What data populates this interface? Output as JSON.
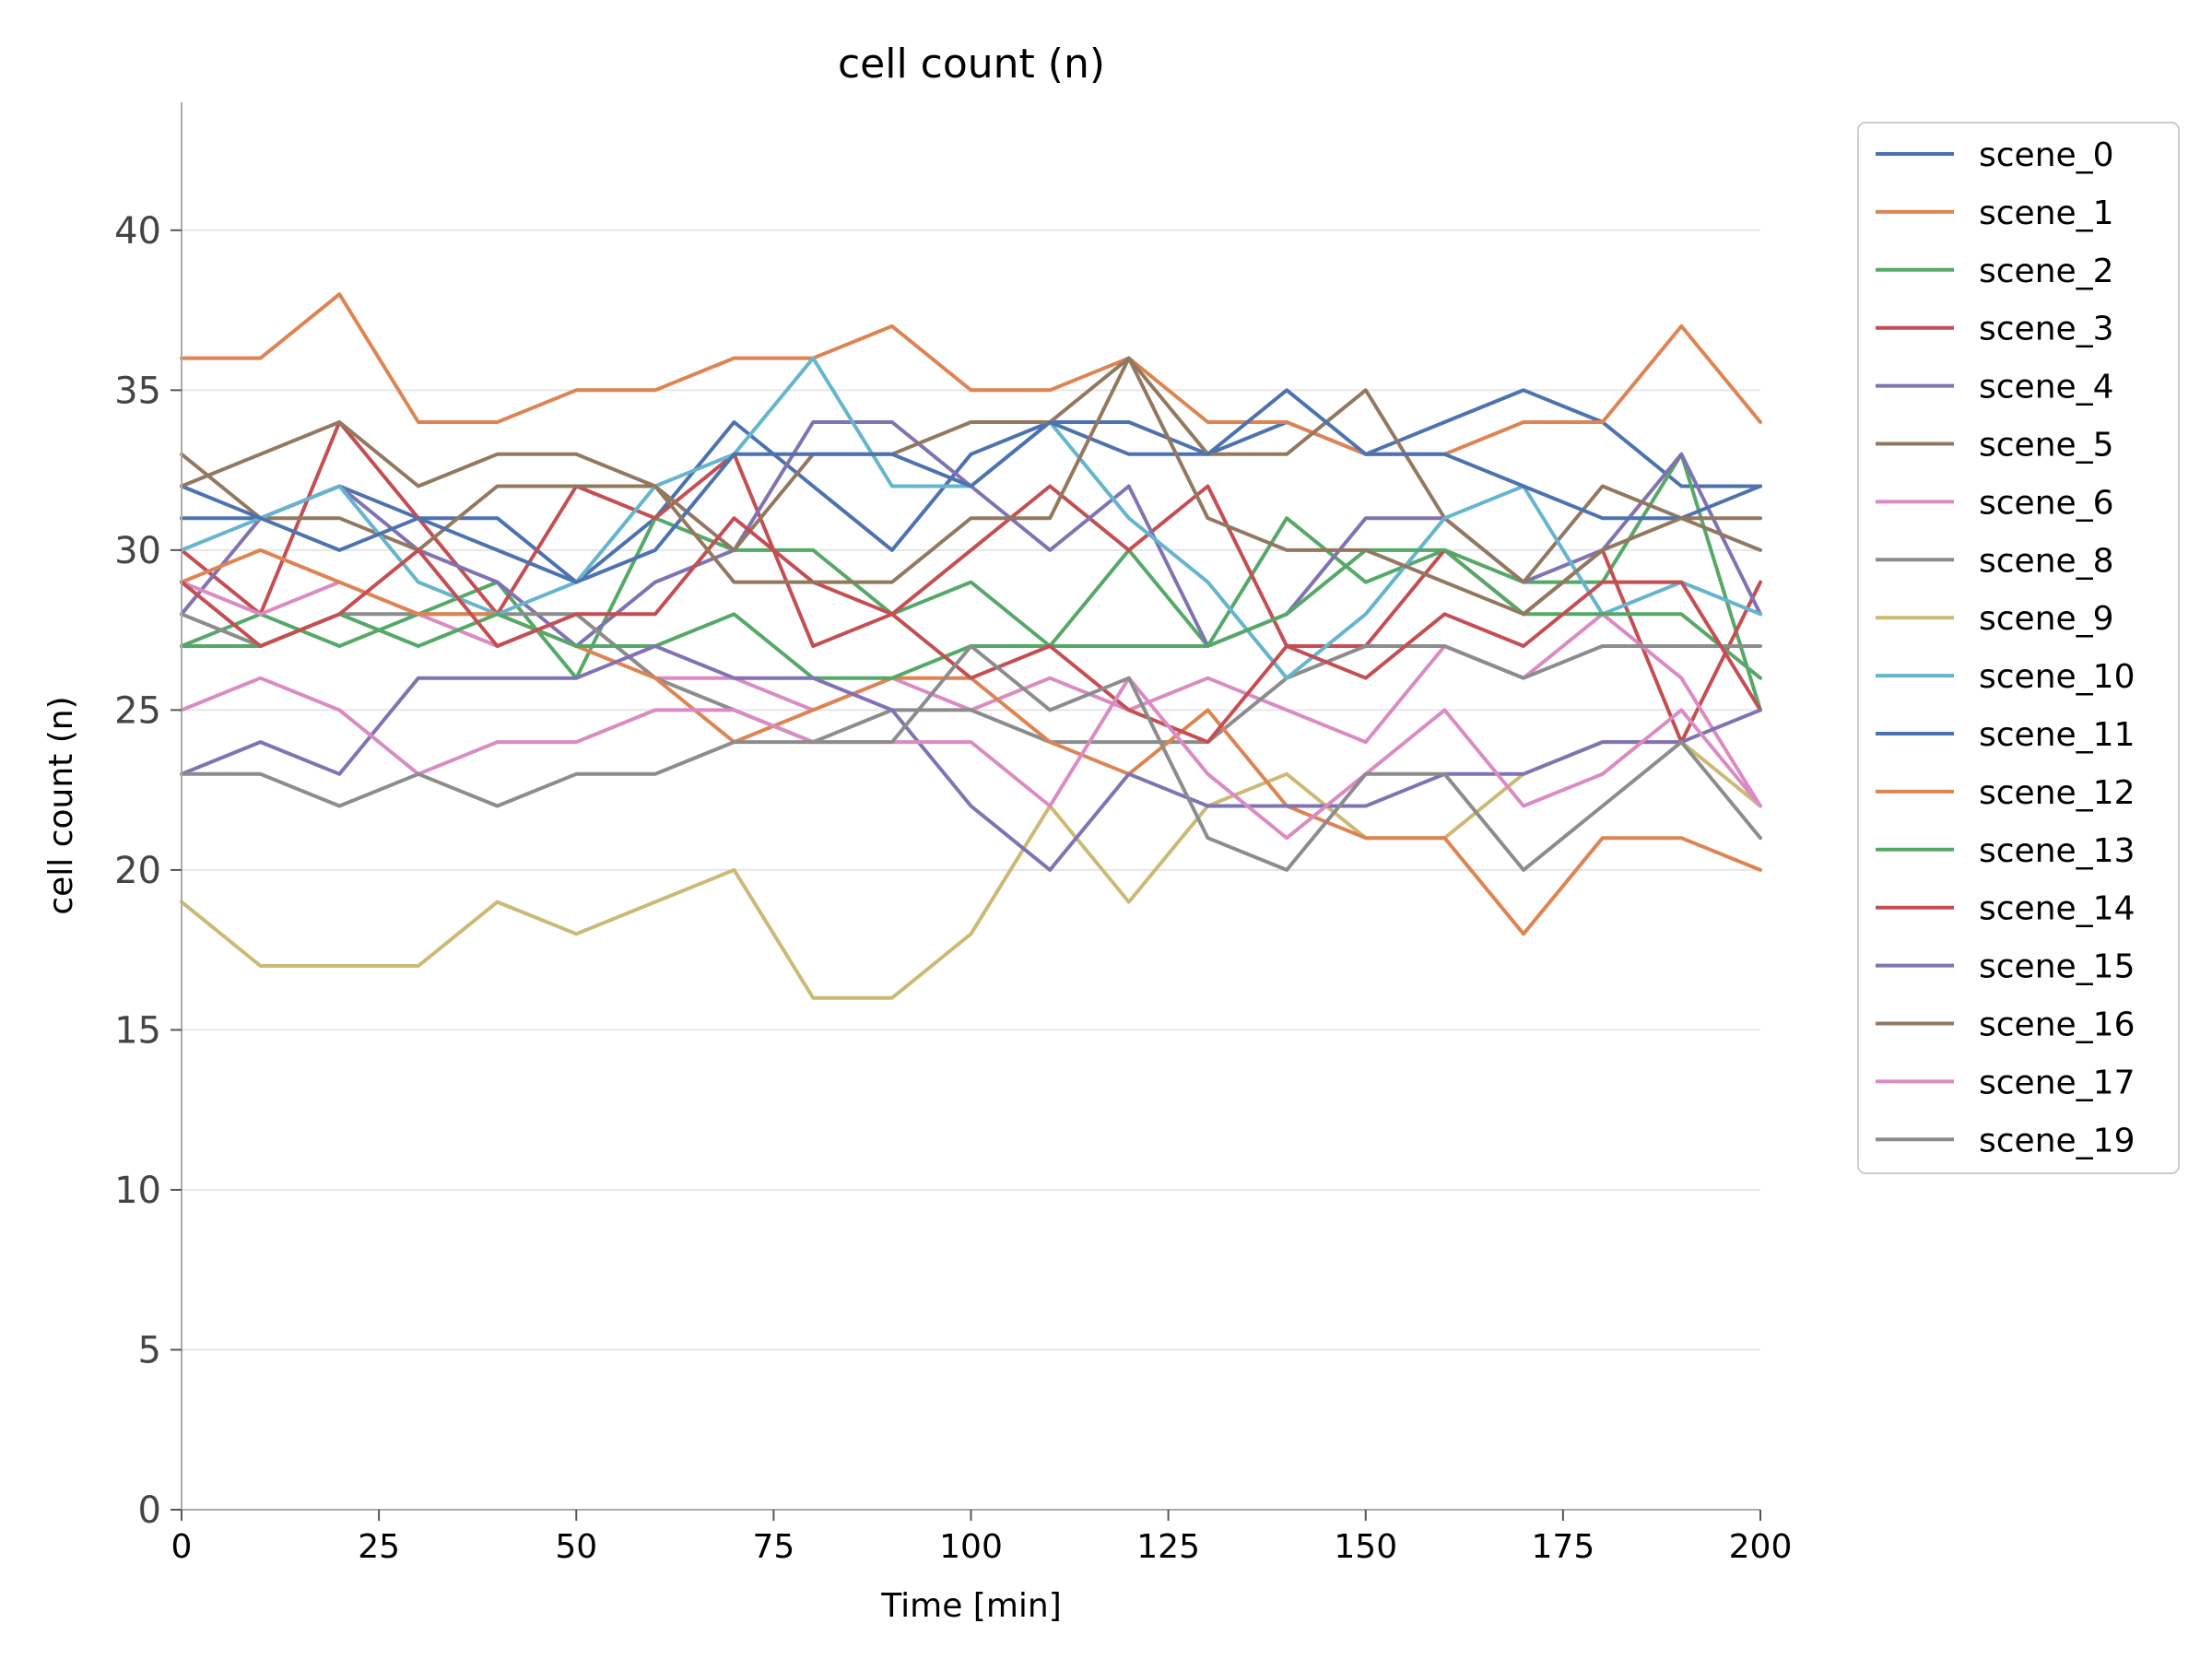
{
  "chart_data": {
    "type": "line",
    "title": "cell count (n)",
    "xlabel": "Time [min]",
    "ylabel": "cell count (n)",
    "xlim": [
      0,
      200
    ],
    "ylim": [
      0,
      44
    ],
    "xticks": [
      0,
      25,
      50,
      75,
      100,
      125,
      150,
      175,
      200
    ],
    "yticks": [
      0,
      5,
      10,
      15,
      20,
      25,
      30,
      35,
      40
    ],
    "grid": "y",
    "legend_position": "outside-right",
    "x": [
      0,
      10,
      20,
      30,
      40,
      50,
      60,
      70,
      80,
      90,
      100,
      110,
      120,
      130,
      140,
      150,
      160,
      170,
      180,
      190,
      200
    ],
    "series": [
      {
        "name": "scene_0",
        "color": "#4c72b0",
        "values": [
          31,
          31,
          32,
          31,
          31,
          29,
          31,
          34,
          32,
          30,
          33,
          34,
          34,
          33,
          34,
          33,
          34,
          35,
          34,
          32,
          32
        ]
      },
      {
        "name": "scene_1",
        "color": "#dd8452",
        "values": [
          36,
          36,
          38,
          34,
          34,
          35,
          35,
          36,
          36,
          37,
          35,
          35,
          36,
          34,
          34,
          33,
          33,
          34,
          34,
          37,
          34
        ]
      },
      {
        "name": "scene_2",
        "color": "#55a868",
        "values": [
          27,
          28,
          27,
          28,
          29,
          26,
          31,
          30,
          30,
          28,
          29,
          27,
          30,
          27,
          31,
          29,
          30,
          29,
          29,
          33,
          25
        ]
      },
      {
        "name": "scene_3",
        "color": "#c44e52",
        "values": [
          30,
          28,
          34,
          31,
          28,
          32,
          31,
          33,
          27,
          28,
          30,
          32,
          30,
          32,
          27,
          27,
          30,
          28,
          30,
          24,
          29
        ]
      },
      {
        "name": "scene_4",
        "color": "#8172b3",
        "values": [
          28,
          31,
          32,
          30,
          29,
          27,
          29,
          30,
          34,
          34,
          32,
          30,
          32,
          27,
          28,
          31,
          31,
          29,
          30,
          33,
          28
        ]
      },
      {
        "name": "scene_5",
        "color": "#937860",
        "values": [
          33,
          31,
          31,
          30,
          32,
          32,
          32,
          30,
          33,
          33,
          34,
          34,
          36,
          33,
          33,
          35,
          31,
          29,
          32,
          31,
          30
        ]
      },
      {
        "name": "scene_6",
        "color": "#da8bc3",
        "values": [
          29,
          28,
          29,
          28,
          27,
          28,
          26,
          26,
          25,
          26,
          25,
          26,
          25,
          26,
          25,
          24,
          27,
          26,
          28,
          26,
          22
        ]
      },
      {
        "name": "scene_8",
        "color": "#8c8c8c",
        "values": [
          28,
          27,
          28,
          28,
          28,
          28,
          26,
          25,
          24,
          25,
          25,
          24,
          24,
          24,
          26,
          27,
          27,
          26,
          27,
          27,
          27
        ]
      },
      {
        "name": "scene_9",
        "color": "#ccb974",
        "values": [
          19,
          17,
          17,
          17,
          19,
          18,
          19,
          20,
          16,
          16,
          18,
          22,
          19,
          22,
          23,
          21,
          21,
          23,
          24,
          24,
          22
        ]
      },
      {
        "name": "scene_10",
        "color": "#64b5cd",
        "values": [
          30,
          31,
          32,
          29,
          28,
          29,
          32,
          33,
          36,
          32,
          32,
          34,
          31,
          29,
          26,
          28,
          31,
          32,
          28,
          29,
          28
        ]
      },
      {
        "name": "scene_11",
        "color": "#4c72b0",
        "values": [
          32,
          31,
          30,
          31,
          30,
          29,
          30,
          33,
          33,
          33,
          32,
          34,
          33,
          33,
          35,
          33,
          33,
          32,
          31,
          31,
          32
        ]
      },
      {
        "name": "scene_12",
        "color": "#dd8452",
        "values": [
          29,
          30,
          29,
          28,
          28,
          27,
          26,
          24,
          25,
          26,
          26,
          24,
          23,
          25,
          22,
          21,
          21,
          18,
          21,
          21,
          20
        ]
      },
      {
        "name": "scene_13",
        "color": "#55a868",
        "values": [
          27,
          27,
          28,
          27,
          28,
          27,
          27,
          28,
          26,
          26,
          27,
          27,
          27,
          27,
          28,
          30,
          30,
          28,
          28,
          28,
          26
        ]
      },
      {
        "name": "scene_14",
        "color": "#c44e52",
        "values": [
          29,
          27,
          28,
          30,
          27,
          28,
          28,
          31,
          29,
          28,
          26,
          27,
          25,
          24,
          27,
          26,
          28,
          27,
          29,
          29,
          25
        ]
      },
      {
        "name": "scene_15",
        "color": "#8172b3",
        "values": [
          23,
          24,
          23,
          26,
          26,
          26,
          27,
          26,
          26,
          25,
          22,
          20,
          23,
          22,
          22,
          22,
          23,
          23,
          24,
          24,
          25
        ]
      },
      {
        "name": "scene_16",
        "color": "#937860",
        "values": [
          32,
          33,
          34,
          32,
          33,
          33,
          32,
          29,
          29,
          29,
          31,
          31,
          36,
          31,
          30,
          30,
          29,
          28,
          30,
          31,
          31
        ]
      },
      {
        "name": "scene_17",
        "color": "#da8bc3",
        "values": [
          25,
          26,
          25,
          23,
          24,
          24,
          25,
          25,
          24,
          24,
          24,
          22,
          26,
          23,
          21,
          23,
          25,
          22,
          23,
          25,
          22
        ]
      },
      {
        "name": "scene_19",
        "color": "#8c8c8c",
        "values": [
          23,
          23,
          22,
          23,
          22,
          23,
          23,
          24,
          24,
          24,
          27,
          25,
          26,
          21,
          20,
          23,
          23,
          20,
          22,
          24,
          21
        ]
      }
    ]
  }
}
